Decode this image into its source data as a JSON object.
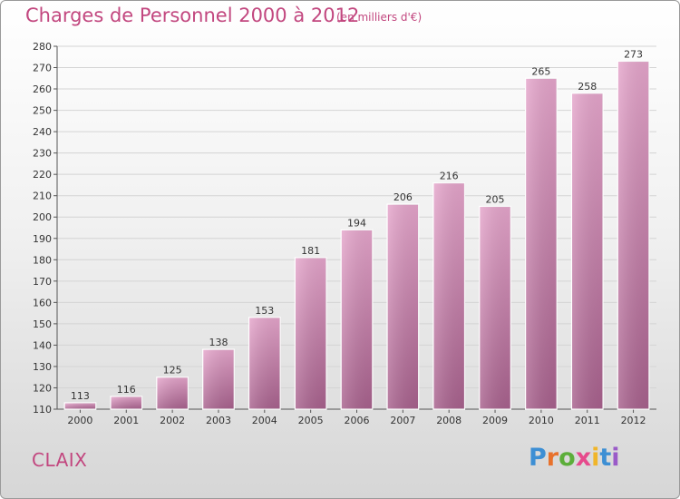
{
  "chart_data": {
    "type": "bar",
    "title": "Charges de Personnel 2000 à 2012",
    "subtitle": "(en milliers d'€)",
    "categories": [
      "2000",
      "2001",
      "2002",
      "2003",
      "2004",
      "2005",
      "2006",
      "2007",
      "2008",
      "2009",
      "2010",
      "2011",
      "2012"
    ],
    "values": [
      113,
      116,
      125,
      138,
      153,
      181,
      194,
      206,
      216,
      205,
      265,
      258,
      273
    ],
    "ylim": [
      110,
      280
    ],
    "ytick_step": 10,
    "grid": true,
    "bar_color": "#d98fb8"
  },
  "footer": {
    "commune": "CLAIX",
    "logo_letters": [
      "P",
      "r",
      "o",
      "x",
      "i",
      "t",
      "i"
    ],
    "logo_colors": [
      "#3d8fd4",
      "#e8722c",
      "#5cae3a",
      "#e64a8c",
      "#f0b52a",
      "#3d8fd4",
      "#9a5bc8"
    ]
  }
}
